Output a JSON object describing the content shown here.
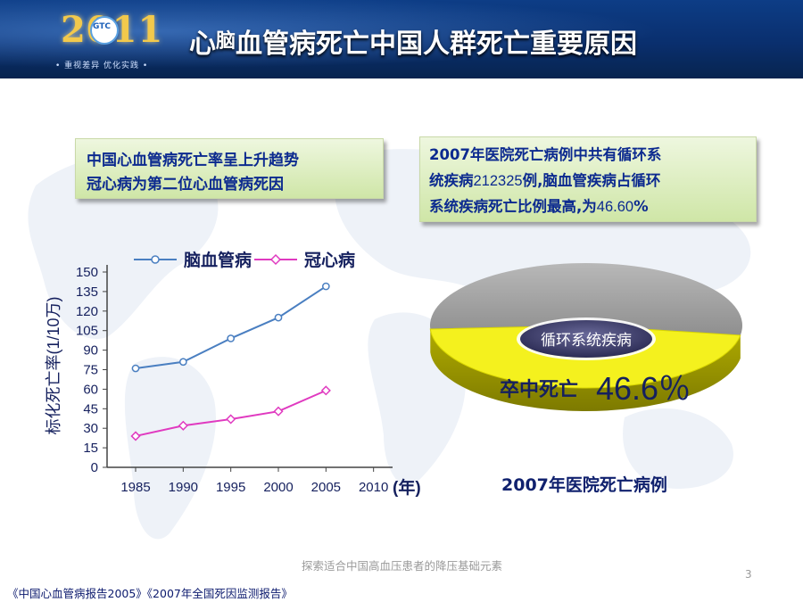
{
  "header": {
    "logo_year": "2011",
    "logo_badge": "GTC",
    "logo_tagline": "• 重视差异 优化实践 •",
    "title_part1": "心",
    "title_part2": "脑",
    "title_part3": "血管病死亡中国人群死亡重要原因"
  },
  "box_left": {
    "line1": "中国心血管病死亡率呈上升趋势",
    "line2": "冠心病为第二位心血管病死因"
  },
  "box_right": {
    "line1": "2007年医院死亡病例中共有循环系",
    "line2_a": "统疾病",
    "line2_num": "212325",
    "line2_b": "例,脑血管疾病占循环",
    "line3_a": "系统疾病死亡比例最高,为",
    "line3_num": "46.60",
    "line3_b": "%"
  },
  "chart_data": [
    {
      "type": "line",
      "ylabel": "标化死亡率(1/10万)",
      "xlabel": "(年)",
      "x": [
        1985,
        1990,
        1995,
        2000,
        2005
      ],
      "x_ticks": [
        "1985",
        "1990",
        "1995",
        "2000",
        "2005",
        "2010"
      ],
      "y_ticks": [
        "0",
        "15",
        "30",
        "45",
        "60",
        "75",
        "90",
        "105",
        "120",
        "135",
        "150"
      ],
      "ylim": [
        0,
        150
      ],
      "xlim": [
        1982,
        2012
      ],
      "legend_position": "top",
      "series": [
        {
          "name": "脑血管病",
          "color": "#4a7fc1",
          "marker": "circle",
          "values": [
            76,
            81,
            99,
            115,
            139
          ]
        },
        {
          "name": "冠心病",
          "color": "#e03ac0",
          "marker": "diamond",
          "values": [
            24,
            32,
            37,
            43,
            59
          ]
        }
      ]
    },
    {
      "type": "pie",
      "title": "2007年医院死亡病例",
      "center_label": "循环系统疾病",
      "slices": [
        {
          "label": "卒中死亡",
          "value": 46.6,
          "value_text": "46.6％",
          "color": "#f4f11e"
        },
        {
          "label": "",
          "value": 53.4,
          "color": "#a8a8a8"
        }
      ]
    }
  ],
  "footer": {
    "center_text": "探索适合中国高血压患者的降压基础元素",
    "page_number": "3",
    "references": "《中国心血管病报告2005》《2007年全国死因监测报告》"
  }
}
